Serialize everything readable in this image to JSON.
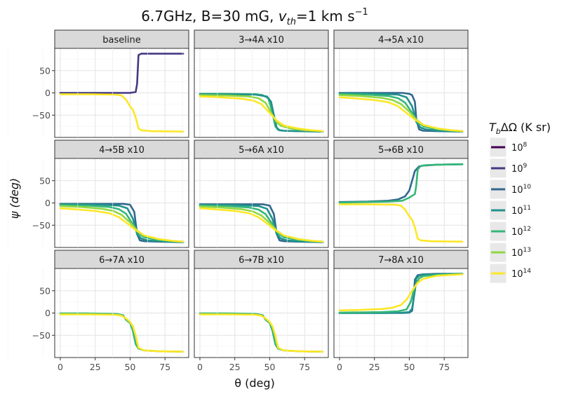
{
  "chart_data": {
    "type": "line",
    "title": "6.7GHz, B=30 mG, v_th=1 km s^-1",
    "title_parts": {
      "prefix": "6.7GHz, B=30 mG, ",
      "v": "v",
      "th": "th",
      "mid": "=1 km s",
      "exp": "−1"
    },
    "xlabel": "θ (deg)",
    "ylabel": "ψ (deg)",
    "xlim": [
      -4,
      92
    ],
    "ylim": [
      -100,
      100
    ],
    "x_ticks": [
      0,
      25,
      50,
      75
    ],
    "x_tick_labels": [
      "0",
      "25",
      "50",
      "75"
    ],
    "y_ticks": [
      50,
      0,
      -50
    ],
    "y_tick_labels": [
      "50",
      "0",
      "−50"
    ],
    "legend": {
      "title_prefix": "T",
      "title_sub": "b",
      "title_suffix": "ΔΩ (K sr)",
      "position": "right",
      "entries": [
        {
          "base": "10",
          "exp": "8",
          "color": "#440154"
        },
        {
          "base": "10",
          "exp": "9",
          "color": "#443983"
        },
        {
          "base": "10",
          "exp": "10",
          "color": "#31688e"
        },
        {
          "base": "10",
          "exp": "11",
          "color": "#21918c"
        },
        {
          "base": "10",
          "exp": "12",
          "color": "#35b779"
        },
        {
          "base": "10",
          "exp": "13",
          "color": "#90d743"
        },
        {
          "base": "10",
          "exp": "14",
          "color": "#fde725"
        }
      ]
    },
    "panels": [
      {
        "label": "baseline",
        "series": [
          {
            "level": 9,
            "x": [
              0,
              20,
              40,
              50,
              54,
              55,
              56,
              58,
              70,
              88
            ],
            "y": [
              0,
              0,
              0,
              0,
              2,
              20,
              85,
              88,
              88,
              88
            ]
          },
          {
            "level": 14,
            "x": [
              0,
              20,
              40,
              44,
              47,
              50,
              52,
              54,
              56,
              58,
              65,
              88
            ],
            "y": [
              -3,
              -3,
              -4,
              -6,
              -15,
              -30,
              -38,
              -55,
              -80,
              -84,
              -86,
              -87
            ]
          }
        ]
      },
      {
        "label": "3→4A x10",
        "series": [
          {
            "level": 12,
            "x": [
              0,
              20,
              40,
              45,
              49,
              52,
              54,
              56,
              60,
              70,
              88
            ],
            "y": [
              -2,
              -2,
              -3,
              -5,
              -12,
              -45,
              -75,
              -83,
              -85,
              -86,
              -87
            ]
          },
          {
            "level": 11,
            "x": [
              0,
              40,
              48,
              51,
              53,
              55,
              57,
              60,
              70,
              88
            ],
            "y": [
              -3,
              -4,
              -8,
              -20,
              -50,
              -78,
              -84,
              -85,
              -86,
              -87
            ]
          },
          {
            "level": 13,
            "x": [
              0,
              20,
              35,
              42,
              47,
              52,
              55,
              58,
              65,
              75,
              88
            ],
            "y": [
              -5,
              -6,
              -8,
              -12,
              -22,
              -50,
              -66,
              -74,
              -80,
              -84,
              -86
            ]
          },
          {
            "level": 14,
            "x": [
              0,
              15,
              30,
              38,
              44,
              50,
              55,
              60,
              70,
              80,
              88
            ],
            "y": [
              -8,
              -10,
              -13,
              -17,
              -25,
              -45,
              -62,
              -73,
              -80,
              -84,
              -86
            ]
          }
        ]
      },
      {
        "label": "4→5A x10",
        "series": [
          {
            "level": 10,
            "x": [
              0,
              30,
              45,
              50,
              52,
              54,
              55,
              57,
              60,
              70,
              88
            ],
            "y": [
              0,
              0,
              0,
              -2,
              -5,
              -20,
              -60,
              -82,
              -85,
              -86,
              -87
            ]
          },
          {
            "level": 11,
            "x": [
              0,
              30,
              42,
              48,
              52,
              55,
              58,
              62,
              70,
              88
            ],
            "y": [
              -1,
              -2,
              -4,
              -10,
              -30,
              -65,
              -78,
              -82,
              -85,
              -87
            ]
          },
          {
            "level": 12,
            "x": [
              0,
              20,
              35,
              42,
              47,
              52,
              56,
              60,
              70,
              80,
              88
            ],
            "y": [
              -3,
              -4,
              -7,
              -12,
              -22,
              -45,
              -65,
              -75,
              -82,
              -85,
              -86
            ]
          },
          {
            "level": 13,
            "x": [
              0,
              15,
              30,
              38,
              44,
              50,
              55,
              60,
              70,
              80,
              88
            ],
            "y": [
              -5,
              -7,
              -11,
              -16,
              -25,
              -42,
              -60,
              -72,
              -80,
              -84,
              -86
            ]
          },
          {
            "level": 14,
            "x": [
              0,
              10,
              25,
              35,
              42,
              48,
              54,
              60,
              70,
              80,
              88
            ],
            "y": [
              -10,
              -12,
              -16,
              -21,
              -30,
              -45,
              -60,
              -72,
              -80,
              -84,
              -86
            ]
          }
        ]
      },
      {
        "label": "4→5B x10",
        "series": [
          {
            "level": 10,
            "x": [
              0,
              30,
              45,
              50,
              53,
              55,
              57,
              60,
              70,
              88
            ],
            "y": [
              -2,
              -2,
              -2,
              -4,
              -20,
              -70,
              -84,
              -86,
              -87,
              -88
            ]
          },
          {
            "level": 11,
            "x": [
              0,
              30,
              42,
              48,
              52,
              55,
              58,
              62,
              70,
              88
            ],
            "y": [
              -3,
              -4,
              -6,
              -12,
              -35,
              -70,
              -80,
              -84,
              -86,
              -88
            ]
          },
          {
            "level": 12,
            "x": [
              0,
              20,
              35,
              42,
              47,
              52,
              56,
              60,
              70,
              80,
              88
            ],
            "y": [
              -5,
              -6,
              -9,
              -14,
              -24,
              -48,
              -68,
              -77,
              -83,
              -86,
              -87
            ]
          },
          {
            "level": 13,
            "x": [
              0,
              15,
              30,
              38,
              44,
              50,
              55,
              60,
              70,
              80,
              88
            ],
            "y": [
              -7,
              -9,
              -13,
              -18,
              -27,
              -44,
              -62,
              -73,
              -81,
              -85,
              -87
            ]
          },
          {
            "level": 14,
            "x": [
              0,
              10,
              25,
              35,
              42,
              48,
              54,
              60,
              70,
              80,
              88
            ],
            "y": [
              -12,
              -14,
              -18,
              -23,
              -32,
              -46,
              -61,
              -73,
              -81,
              -85,
              -87
            ]
          }
        ]
      },
      {
        "label": "5→6A x10",
        "series": [
          {
            "level": 10,
            "x": [
              0,
              30,
              45,
              50,
              53,
              55,
              57,
              60,
              70,
              88
            ],
            "y": [
              -3,
              -3,
              -3,
              -6,
              -25,
              -70,
              -84,
              -86,
              -87,
              -88
            ]
          },
          {
            "level": 11,
            "x": [
              0,
              30,
              42,
              48,
              52,
              55,
              58,
              62,
              70,
              88
            ],
            "y": [
              -4,
              -5,
              -7,
              -13,
              -36,
              -70,
              -80,
              -84,
              -86,
              -88
            ]
          },
          {
            "level": 12,
            "x": [
              0,
              20,
              35,
              42,
              47,
              52,
              56,
              60,
              70,
              80,
              88
            ],
            "y": [
              -6,
              -7,
              -10,
              -15,
              -25,
              -48,
              -68,
              -77,
              -83,
              -86,
              -87
            ]
          },
          {
            "level": 13,
            "x": [
              0,
              15,
              30,
              38,
              44,
              50,
              55,
              60,
              70,
              80,
              88
            ],
            "y": [
              -8,
              -10,
              -14,
              -19,
              -28,
              -45,
              -62,
              -73,
              -81,
              -85,
              -87
            ]
          },
          {
            "level": 14,
            "x": [
              0,
              10,
              25,
              35,
              42,
              48,
              54,
              60,
              70,
              80,
              88
            ],
            "y": [
              -12,
              -14,
              -18,
              -23,
              -32,
              -46,
              -61,
              -73,
              -81,
              -85,
              -87
            ]
          }
        ]
      },
      {
        "label": "5→6B x10",
        "series": [
          {
            "level": 10,
            "x": [
              0,
              20,
              35,
              42,
              47,
              50,
              52,
              54,
              57,
              60,
              70,
              88
            ],
            "y": [
              2,
              3,
              5,
              8,
              15,
              28,
              50,
              72,
              82,
              84,
              86,
              87
            ]
          },
          {
            "level": 12,
            "x": [
              0,
              20,
              35,
              45,
              50,
              52,
              54,
              55,
              56,
              58,
              62,
              70,
              88
            ],
            "y": [
              1,
              2,
              3,
              5,
              12,
              16,
              20,
              40,
              75,
              83,
              85,
              86,
              87
            ]
          },
          {
            "level": 14,
            "x": [
              0,
              20,
              40,
              44,
              47,
              50,
              52,
              54,
              56,
              58,
              65,
              88
            ],
            "y": [
              -3,
              -3,
              -4,
              -6,
              -15,
              -30,
              -38,
              -55,
              -80,
              -84,
              -86,
              -87
            ]
          }
        ]
      },
      {
        "label": "6→7A x10",
        "series": [
          {
            "level": 12,
            "x": [
              0,
              20,
              40,
              45,
              47,
              49,
              50,
              52,
              54,
              56,
              60,
              70,
              88
            ],
            "y": [
              -1,
              -1,
              -2,
              -5,
              -15,
              -20,
              -22,
              -40,
              -70,
              -80,
              -84,
              -86,
              -87
            ]
          },
          {
            "level": 14,
            "x": [
              0,
              20,
              40,
              44,
              47,
              50,
              52,
              54,
              56,
              60,
              70,
              88
            ],
            "y": [
              -3,
              -3,
              -4,
              -6,
              -12,
              -20,
              -30,
              -50,
              -78,
              -84,
              -86,
              -87
            ]
          }
        ]
      },
      {
        "label": "6→7B x10",
        "series": [
          {
            "level": 12,
            "x": [
              0,
              20,
              40,
              45,
              47,
              49,
              50,
              52,
              54,
              56,
              60,
              70,
              88
            ],
            "y": [
              -1,
              -1,
              -2,
              -5,
              -15,
              -20,
              -22,
              -40,
              -70,
              -80,
              -84,
              -86,
              -87
            ]
          },
          {
            "level": 14,
            "x": [
              0,
              20,
              40,
              44,
              47,
              50,
              52,
              54,
              56,
              60,
              70,
              88
            ],
            "y": [
              -3,
              -3,
              -4,
              -6,
              -12,
              -20,
              -30,
              -50,
              -78,
              -84,
              -86,
              -87
            ]
          }
        ]
      },
      {
        "label": "7→8A x10",
        "series": [
          {
            "level": 10,
            "x": [
              0,
              30,
              45,
              50,
              52,
              53,
              54,
              56,
              60,
              70,
              88
            ],
            "y": [
              0,
              0,
              0,
              1,
              5,
              30,
              75,
              85,
              87,
              88,
              88
            ]
          },
          {
            "level": 11,
            "x": [
              0,
              30,
              45,
              50,
              52,
              54,
              55,
              57,
              60,
              70,
              88
            ],
            "y": [
              0,
              0,
              1,
              2,
              10,
              50,
              78,
              84,
              86,
              87,
              88
            ]
          },
          {
            "level": 12,
            "x": [
              0,
              30,
              42,
              48,
              51,
              54,
              57,
              60,
              70,
              88
            ],
            "y": [
              1,
              2,
              4,
              8,
              25,
              60,
              78,
              83,
              86,
              88
            ]
          },
          {
            "level": 14,
            "x": [
              0,
              15,
              30,
              38,
              44,
              48,
              52,
              56,
              60,
              70,
              88
            ],
            "y": [
              6,
              7,
              9,
              12,
              18,
              30,
              50,
              68,
              77,
              84,
              87
            ]
          }
        ]
      }
    ]
  }
}
